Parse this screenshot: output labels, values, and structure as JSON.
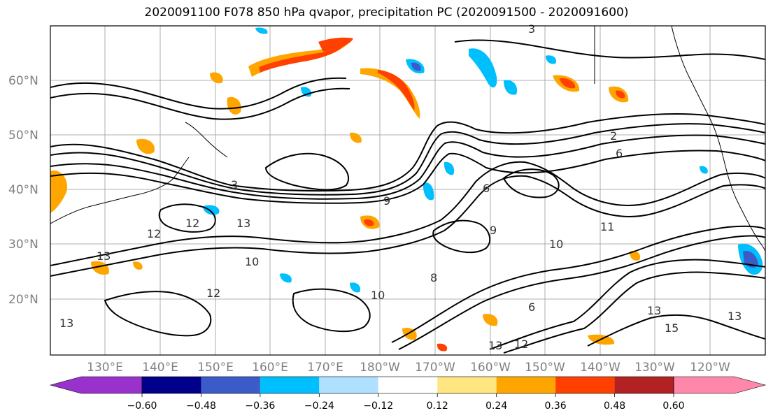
{
  "title": "2020091100 F078 850 hPa qvapor, precipitation PC (2020091500 - 2020091600)",
  "map": {
    "lat_labels": [
      "60°N",
      "50°N",
      "40°N",
      "30°N",
      "20°N"
    ],
    "lon_labels": [
      "130°E",
      "140°E",
      "150°E",
      "160°E",
      "170°E",
      "180°W",
      "170°W",
      "160°W",
      "150°W",
      "140°W",
      "130°W",
      "120°W"
    ],
    "contour_labels": [
      "3",
      "6",
      "2",
      "3",
      "6",
      "9",
      "11",
      "10",
      "13",
      "12",
      "12",
      "13",
      "10",
      "9",
      "8",
      "10",
      "6",
      "13",
      "12",
      "13",
      "13",
      "15",
      "12",
      "13"
    ]
  },
  "colorbar": {
    "ticks": [
      "−0.60",
      "−0.48",
      "−0.36",
      "−0.24",
      "−0.12",
      "0.12",
      "0.24",
      "0.36",
      "0.48",
      "0.60"
    ],
    "colors": [
      "#9932cc",
      "#00008b",
      "#3a5bc8",
      "#00bfff",
      "#b0e0ff",
      "#ffffff",
      "#ffe680",
      "#ffa500",
      "#ff4000",
      "#b22222",
      "#ff88aa"
    ]
  }
}
